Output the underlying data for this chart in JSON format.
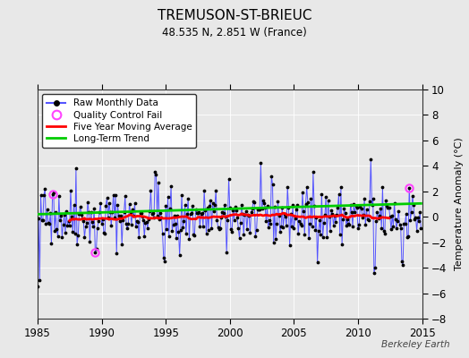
{
  "title": "TREMUSON-ST-BRIEUC",
  "subtitle": "48.535 N, 2.851 W (France)",
  "ylabel": "Temperature Anomaly (°C)",
  "credit": "Berkeley Earth",
  "xlim": [
    1985,
    2015
  ],
  "ylim": [
    -8,
    10
  ],
  "yticks": [
    -8,
    -6,
    -4,
    -2,
    0,
    2,
    4,
    6,
    8,
    10
  ],
  "xticks": [
    1985,
    1990,
    1995,
    2000,
    2005,
    2010,
    2015
  ],
  "bg_color": "#e8e8e8",
  "raw_color": "#5555ff",
  "dot_color": "#000000",
  "ma_color": "#ff0000",
  "trend_color": "#00cc00",
  "qc_color": "#ff44ff",
  "seed": 42,
  "n_years": 30,
  "start_year": 1985
}
